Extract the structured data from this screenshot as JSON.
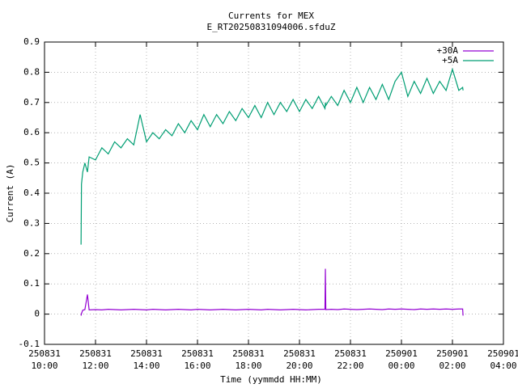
{
  "chart_data": {
    "type": "line",
    "title": "Currents for MEX",
    "subtitle": "E_RT20250831094006.sfduZ",
    "x_label": "Time (yymmdd HH:MM)",
    "y_label": "Current (A)",
    "xlim": [
      "250831 10:00",
      "250901 04:00"
    ],
    "xticks": [
      "250831 10:00",
      "250831 12:00",
      "250831 14:00",
      "250831 16:00",
      "250831 18:00",
      "250831 20:00",
      "250831 22:00",
      "250901 00:00",
      "250901 02:00",
      "250901 04:00"
    ],
    "ylim": [
      -0.1,
      0.9
    ],
    "yticks": [
      -0.1,
      0,
      0.1,
      0.2,
      0.3,
      0.4,
      0.5,
      0.6,
      0.7,
      0.8,
      0.9
    ],
    "grid": true,
    "legend": "top-right",
    "x": [
      "250831 11:26",
      "250831 11:27",
      "250831 11:30",
      "250831 11:35",
      "250831 11:41",
      "250831 11:45",
      "250831 12:00",
      "250831 12:15",
      "250831 12:30",
      "250831 12:45",
      "250831 13:00",
      "250831 13:15",
      "250831 13:30",
      "250831 13:45",
      "250831 14:00",
      "250831 14:15",
      "250831 14:30",
      "250831 14:45",
      "250831 15:00",
      "250831 15:15",
      "250831 15:30",
      "250831 15:45",
      "250831 16:00",
      "250831 16:15",
      "250831 16:30",
      "250831 16:45",
      "250831 17:00",
      "250831 17:15",
      "250831 17:30",
      "250831 17:45",
      "250831 18:00",
      "250831 18:15",
      "250831 18:30",
      "250831 18:45",
      "250831 19:00",
      "250831 19:15",
      "250831 19:30",
      "250831 19:45",
      "250831 20:00",
      "250831 20:15",
      "250831 20:30",
      "250831 20:45",
      "250831 21:00",
      "250831 21:01",
      "250831 21:02",
      "250831 21:15",
      "250831 21:30",
      "250831 21:45",
      "250831 22:00",
      "250831 22:15",
      "250831 22:30",
      "250831 22:45",
      "250831 23:00",
      "250831 23:15",
      "250831 23:30",
      "250831 23:45",
      "250901 00:00",
      "250901 00:15",
      "250901 00:30",
      "250901 00:45",
      "250901 01:00",
      "250901 01:15",
      "250901 01:30",
      "250901 01:45",
      "250901 02:00",
      "250901 02:15",
      "250901 02:24",
      "250901 02:25"
    ],
    "series": [
      {
        "name": "+30A",
        "color": "#9400d3",
        "values": [
          -0.005,
          0.002,
          0.013,
          0.015,
          0.065,
          0.014,
          0.015,
          0.014,
          0.016,
          0.015,
          0.014,
          0.015,
          0.016,
          0.015,
          0.014,
          0.016,
          0.015,
          0.014,
          0.015,
          0.016,
          0.015,
          0.014,
          0.016,
          0.015,
          0.014,
          0.015,
          0.016,
          0.015,
          0.014,
          0.015,
          0.016,
          0.015,
          0.014,
          0.016,
          0.015,
          0.014,
          0.015,
          0.016,
          0.015,
          0.014,
          0.015,
          0.016,
          0.016,
          0.15,
          0.015,
          0.016,
          0.015,
          0.017,
          0.016,
          0.015,
          0.016,
          0.017,
          0.016,
          0.015,
          0.017,
          0.016,
          0.017,
          0.016,
          0.015,
          0.017,
          0.016,
          0.017,
          0.016,
          0.017,
          0.016,
          0.017,
          0.017,
          -0.005
        ]
      },
      {
        "name": "+5A",
        "color": "#009e73",
        "values": [
          0.23,
          0.43,
          0.47,
          0.5,
          0.47,
          0.52,
          0.51,
          0.55,
          0.53,
          0.57,
          0.55,
          0.58,
          0.56,
          0.66,
          0.57,
          0.6,
          0.58,
          0.61,
          0.59,
          0.63,
          0.6,
          0.64,
          0.61,
          0.66,
          0.62,
          0.66,
          0.63,
          0.67,
          0.64,
          0.68,
          0.65,
          0.69,
          0.65,
          0.7,
          0.66,
          0.7,
          0.67,
          0.71,
          0.67,
          0.71,
          0.68,
          0.72,
          0.68,
          0.7,
          0.69,
          0.72,
          0.69,
          0.74,
          0.7,
          0.75,
          0.7,
          0.75,
          0.71,
          0.76,
          0.71,
          0.77,
          0.8,
          0.72,
          0.77,
          0.73,
          0.78,
          0.73,
          0.77,
          0.74,
          0.81,
          0.74,
          0.75,
          0.74
        ]
      }
    ]
  }
}
